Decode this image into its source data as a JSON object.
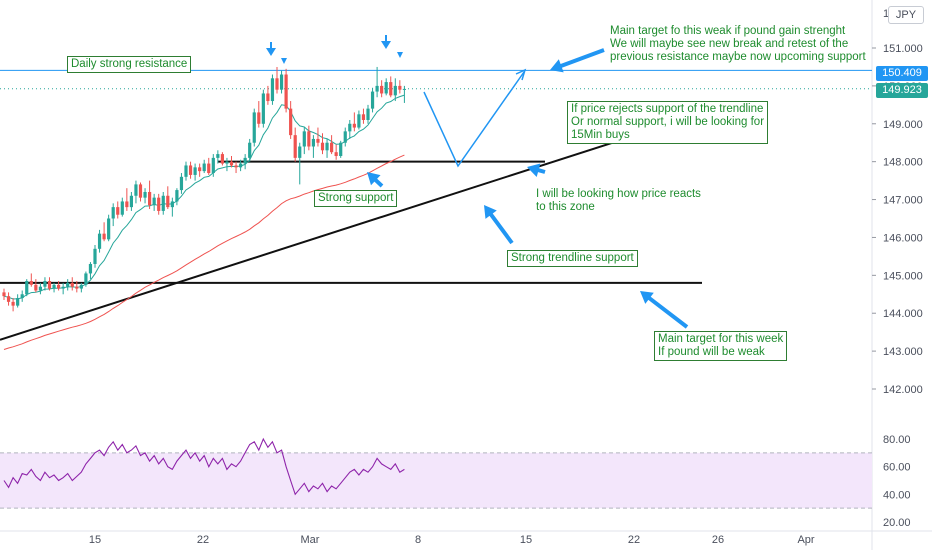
{
  "chart_data": [
    {
      "type": "candlestick",
      "currency": "JPY",
      "y_axis_top_label": "1",
      "y_ticks": [
        "151.000",
        "150.000",
        "149.000",
        "148.000",
        "147.000",
        "146.000",
        "145.000",
        "144.000",
        "143.000",
        "142.000"
      ],
      "x_ticks": [
        "15",
        "22",
        "Mar",
        "8",
        "15",
        "22",
        "26",
        "Apr"
      ],
      "price_tags": [
        {
          "value": "150.409",
          "color": "#2196f3"
        },
        {
          "value": "149.923",
          "color": "#26a69a"
        }
      ],
      "levels": {
        "daily_resistance": 150.409,
        "last_price": 149.923,
        "strong_support": 148.0,
        "weak_target": 144.8
      },
      "trendline": {
        "from": 143.3,
        "to": 148.7
      },
      "candles_ohlc": [
        [
          144.55,
          144.65,
          144.35,
          144.45
        ],
        [
          144.45,
          144.55,
          144.2,
          144.3
        ],
        [
          144.3,
          144.4,
          144.05,
          144.2
        ],
        [
          144.2,
          144.5,
          144.15,
          144.4
        ],
        [
          144.4,
          144.6,
          144.3,
          144.5
        ],
        [
          144.5,
          144.9,
          144.45,
          144.85
        ],
        [
          144.85,
          145.05,
          144.7,
          144.75
        ],
        [
          144.75,
          144.9,
          144.55,
          144.6
        ],
        [
          144.6,
          144.8,
          144.5,
          144.7
        ],
        [
          144.7,
          144.95,
          144.6,
          144.85
        ],
        [
          144.85,
          144.95,
          144.6,
          144.65
        ],
        [
          144.65,
          144.8,
          144.55,
          144.75
        ],
        [
          144.75,
          144.85,
          144.6,
          144.65
        ],
        [
          144.65,
          144.8,
          144.5,
          144.7
        ],
        [
          144.7,
          144.9,
          144.6,
          144.8
        ],
        [
          144.8,
          144.95,
          144.6,
          144.7
        ],
        [
          144.7,
          144.85,
          144.55,
          144.65
        ],
        [
          144.65,
          144.8,
          144.55,
          144.75
        ],
        [
          144.75,
          145.1,
          144.7,
          145.05
        ],
        [
          145.05,
          145.35,
          144.9,
          145.3
        ],
        [
          145.3,
          145.8,
          145.2,
          145.7
        ],
        [
          145.7,
          146.2,
          145.6,
          146.1
        ],
        [
          146.1,
          146.4,
          145.9,
          145.95
        ],
        [
          145.95,
          146.6,
          145.9,
          146.5
        ],
        [
          146.5,
          146.9,
          146.3,
          146.8
        ],
        [
          146.8,
          146.95,
          146.5,
          146.6
        ],
        [
          146.6,
          147.05,
          146.55,
          146.95
        ],
        [
          146.95,
          147.3,
          146.7,
          146.8
        ],
        [
          146.8,
          147.2,
          146.7,
          147.1
        ],
        [
          147.1,
          147.5,
          146.9,
          147.4
        ],
        [
          147.4,
          147.45,
          146.95,
          147.05
        ],
        [
          147.05,
          147.3,
          146.9,
          147.2
        ],
        [
          147.2,
          147.5,
          146.75,
          146.85
        ],
        [
          146.85,
          147.15,
          146.7,
          147.05
        ],
        [
          147.05,
          147.15,
          146.6,
          146.7
        ],
        [
          146.7,
          147.2,
          146.6,
          147.1
        ],
        [
          147.1,
          147.35,
          146.75,
          146.8
        ],
        [
          146.8,
          147.05,
          146.55,
          146.95
        ],
        [
          146.95,
          147.3,
          146.85,
          147.25
        ],
        [
          147.25,
          147.7,
          147.15,
          147.6
        ],
        [
          147.6,
          148.0,
          147.5,
          147.9
        ],
        [
          147.9,
          148.0,
          147.55,
          147.65
        ],
        [
          147.65,
          147.95,
          147.5,
          147.85
        ],
        [
          147.85,
          147.95,
          147.6,
          147.75
        ],
        [
          147.75,
          148.05,
          147.7,
          147.95
        ],
        [
          147.95,
          148.1,
          147.65,
          147.7
        ],
        [
          147.7,
          148.2,
          147.6,
          148.1
        ],
        [
          148.1,
          148.3,
          147.95,
          148.2
        ],
        [
          148.2,
          148.25,
          147.9,
          147.95
        ],
        [
          147.95,
          148.1,
          147.75,
          148.0
        ],
        [
          148.0,
          148.15,
          147.85,
          147.9
        ],
        [
          147.9,
          148.0,
          147.7,
          147.85
        ],
        [
          147.85,
          148.05,
          147.75,
          147.95
        ],
        [
          147.95,
          148.2,
          147.8,
          148.1
        ],
        [
          148.1,
          148.6,
          148.0,
          148.5
        ],
        [
          148.5,
          149.4,
          148.4,
          149.3
        ],
        [
          149.3,
          149.6,
          148.9,
          149.0
        ],
        [
          149.0,
          149.9,
          148.9,
          149.8
        ],
        [
          149.8,
          150.0,
          149.5,
          149.6
        ],
        [
          149.6,
          150.3,
          149.5,
          150.2
        ],
        [
          150.2,
          150.5,
          149.8,
          149.9
        ],
        [
          149.9,
          150.4,
          149.8,
          150.3
        ],
        [
          150.3,
          150.45,
          149.3,
          149.4
        ],
        [
          149.4,
          149.6,
          148.6,
          148.7
        ],
        [
          148.7,
          148.9,
          148.0,
          148.1
        ],
        [
          148.1,
          148.5,
          147.4,
          148.4
        ],
        [
          148.4,
          148.9,
          148.2,
          148.8
        ],
        [
          148.8,
          148.95,
          148.3,
          148.4
        ],
        [
          148.4,
          148.7,
          148.1,
          148.6
        ],
        [
          148.6,
          148.9,
          148.4,
          148.5
        ],
        [
          148.5,
          148.75,
          148.2,
          148.3
        ],
        [
          148.3,
          148.6,
          148.1,
          148.5
        ],
        [
          148.5,
          148.7,
          148.2,
          148.25
        ],
        [
          148.25,
          148.45,
          148.05,
          148.15
        ],
        [
          148.15,
          148.55,
          148.1,
          148.5
        ],
        [
          148.5,
          148.9,
          148.4,
          148.8
        ],
        [
          148.8,
          149.1,
          148.6,
          149.0
        ],
        [
          149.0,
          149.3,
          148.8,
          148.9
        ],
        [
          148.9,
          149.35,
          148.85,
          149.25
        ],
        [
          149.25,
          149.4,
          149.0,
          149.1
        ],
        [
          149.1,
          149.5,
          149.0,
          149.4
        ],
        [
          149.4,
          149.95,
          149.3,
          149.85
        ],
        [
          149.85,
          150.5,
          149.7,
          150.0
        ],
        [
          150.0,
          150.15,
          149.7,
          149.8
        ],
        [
          149.8,
          150.2,
          149.75,
          150.1
        ],
        [
          150.1,
          150.25,
          149.7,
          149.75
        ],
        [
          149.75,
          150.2,
          149.6,
          150.0
        ],
        [
          150.0,
          150.15,
          149.8,
          149.9
        ],
        [
          149.9,
          150.0,
          149.55,
          149.92
        ]
      ],
      "ema_fast_start": 144.45,
      "ema_slow_start": 143.0,
      "rsi": {
        "y_ticks": [
          "80.00",
          "60.00",
          "40.00",
          "20.00"
        ],
        "band": [
          30,
          70
        ],
        "values": [
          50,
          45,
          52,
          48,
          55,
          54,
          58,
          53,
          50,
          56,
          52,
          54,
          50,
          52,
          55,
          50,
          53,
          56,
          62,
          66,
          70,
          72,
          68,
          74,
          78,
          72,
          76,
          70,
          72,
          75,
          68,
          70,
          64,
          68,
          62,
          66,
          60,
          58,
          64,
          68,
          72,
          66,
          70,
          64,
          68,
          60,
          66,
          62,
          66,
          58,
          62,
          60,
          64,
          70,
          76,
          78,
          72,
          80,
          74,
          78,
          70,
          72,
          60,
          50,
          40,
          44,
          48,
          42,
          46,
          44,
          48,
          42,
          46,
          44,
          48,
          52,
          56,
          58,
          54,
          58,
          56,
          60,
          66,
          62,
          60,
          58,
          62,
          56,
          58
        ]
      }
    }
  ],
  "annotations": {
    "daily_resistance": "Daily strong resistance",
    "main_target_up": "Main target fo this weak if pound gain strenght\nWe will maybe see new break and retest of the\nprevious resistance maybe now upcoming support",
    "trendline_buy": "If price rejects support of the trendline\nOr normal support, i will be looking for\n15Min buys",
    "strong_support": "Strong support",
    "watch_zone": "I will be looking how price reacts\nto this zone",
    "strong_trendline": "Strong trendline support",
    "main_target_down": "Main target for this week\nIf pound will be weak"
  },
  "colors": {
    "bull": "#26a69a",
    "bear": "#ef5350",
    "arrow": "#2196f3",
    "ema_fast": "#26a69a",
    "ema_slow": "#ef5350",
    "rsi_line": "#8e24aa",
    "rsi_band": "#f3e6fb",
    "annotation_text": "#1e8c2e"
  }
}
